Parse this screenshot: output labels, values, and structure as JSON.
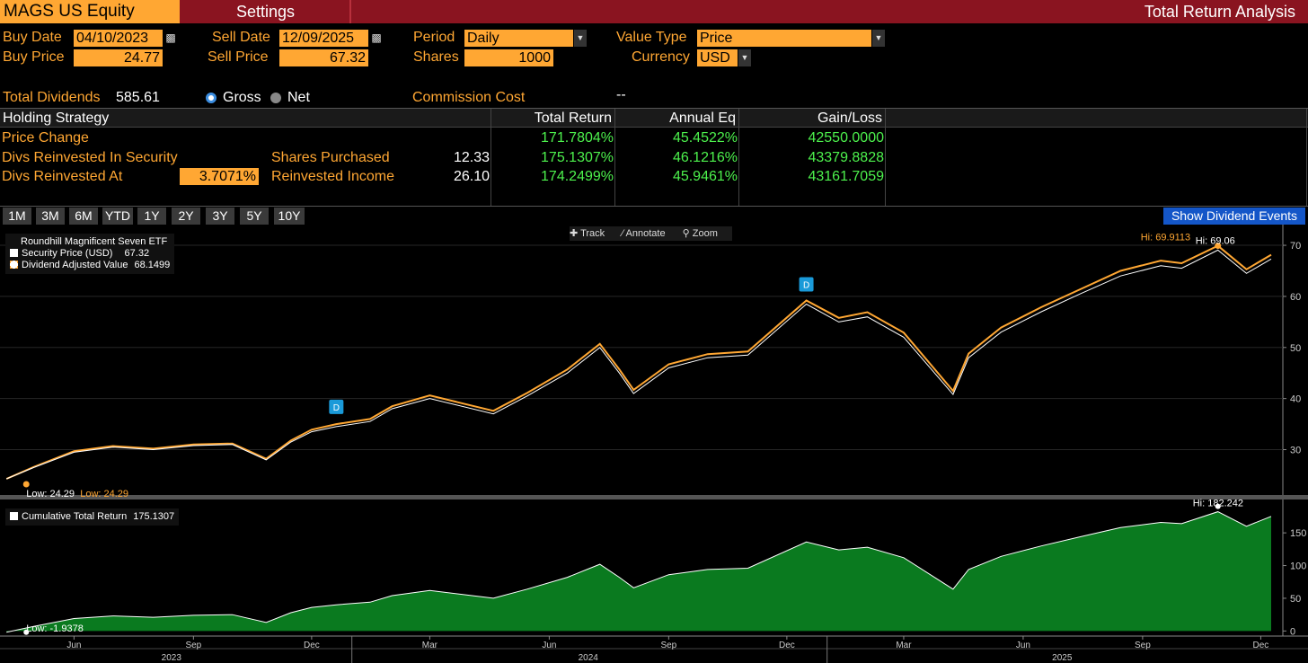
{
  "header": {
    "ticker": "MAGS US Equity",
    "settings_tab": "Settings",
    "title": "Total Return Analysis"
  },
  "params": {
    "buy_date_label": "Buy Date",
    "buy_date": "04/10/2023",
    "sell_date_label": "Sell Date",
    "sell_date": "12/09/2025",
    "period_label": "Period",
    "period": "Daily",
    "value_type_label": "Value Type",
    "value_type": "Price",
    "buy_price_label": "Buy Price",
    "buy_price": "24.77",
    "sell_price_label": "Sell Price",
    "sell_price": "67.32",
    "shares_label": "Shares",
    "shares": "1000",
    "currency_label": "Currency",
    "currency": "USD",
    "total_dividends_label": "Total Dividends",
    "total_dividends": "585.61",
    "gross_label": "Gross",
    "net_label": "Net",
    "commission_label": "Commission Cost",
    "commission_value": "--"
  },
  "table": {
    "headers": [
      "Holding Strategy",
      "Total Return",
      "Annual Eq",
      "Gain/Loss"
    ],
    "rows": [
      {
        "label": "Price Change",
        "extra_label": "",
        "extra_value": "",
        "total_return": "171.7804%",
        "annual_eq": "45.4522%",
        "gain_loss": "42550.0000"
      },
      {
        "label": "Divs Reinvested In Security",
        "extra_label": "Shares Purchased",
        "extra_value": "12.33",
        "total_return": "175.1307%",
        "annual_eq": "46.1216%",
        "gain_loss": "43379.8828"
      },
      {
        "label": "Divs Reinvested At",
        "rate": "3.7071%",
        "extra_label": "Reinvested Income",
        "extra_value": "26.10",
        "total_return": "174.2499%",
        "annual_eq": "45.9461%",
        "gain_loss": "43161.7059"
      }
    ]
  },
  "ranges": [
    "1M",
    "3M",
    "6M",
    "YTD",
    "1Y",
    "2Y",
    "3Y",
    "5Y",
    "10Y"
  ],
  "show_dividend_events": "Show Dividend Events",
  "chart_toolbar": {
    "track": "Track",
    "annotate": "Annotate",
    "zoom": "Zoom"
  },
  "legend": {
    "security_name": "Roundhill Magnificent Seven ETF",
    "price_label": "Security Price (USD)",
    "price_value": "67.32",
    "adj_label": "Dividend Adjusted Value",
    "adj_value": "68.1499",
    "cum_label": "Cumulative Total Return",
    "cum_value": "175.1307"
  },
  "colors": {
    "orange": "#ffa733",
    "header_red": "#8a1420",
    "green_fill": "#0a7a1f",
    "positive_text": "#4df24d"
  },
  "chart_data": [
    {
      "type": "line",
      "title": "",
      "series": [
        {
          "name": "Security Price (USD)"
        },
        {
          "name": "Dividend Adjusted Value"
        }
      ],
      "x": [
        "2023-04-10",
        "2023-05-01",
        "2023-06-01",
        "2023-07-01",
        "2023-08-01",
        "2023-09-01",
        "2023-10-01",
        "2023-10-27",
        "2023-11-15",
        "2023-12-01",
        "2023-12-20",
        "2024-01-15",
        "2024-02-01",
        "2024-03-01",
        "2024-04-19",
        "2024-05-15",
        "2024-06-15",
        "2024-07-10",
        "2024-07-25",
        "2024-08-05",
        "2024-09-01",
        "2024-10-01",
        "2024-11-01",
        "2024-12-16",
        "2025-01-10",
        "2025-02-01",
        "2025-03-01",
        "2025-04-08",
        "2025-04-20",
        "2025-05-15",
        "2025-06-15",
        "2025-07-15",
        "2025-08-15",
        "2025-09-15",
        "2025-10-01",
        "2025-10-29",
        "2025-11-20",
        "2025-12-09"
      ],
      "values_price": [
        24.29,
        26.5,
        29.5,
        30.5,
        30.0,
        30.8,
        31.0,
        28.0,
        31.5,
        33.5,
        34.5,
        35.5,
        38.0,
        40.0,
        37.0,
        40.5,
        45.0,
        50.0,
        45.0,
        41.0,
        46.0,
        48.0,
        48.5,
        58.5,
        55.0,
        56.0,
        52.0,
        40.8,
        48.0,
        53.0,
        57.0,
        60.5,
        64.0,
        66.0,
        65.5,
        69.06,
        64.5,
        67.32
      ],
      "values_adjusted": [
        24.29,
        26.6,
        29.7,
        30.7,
        30.2,
        31.0,
        31.2,
        28.2,
        31.8,
        33.9,
        35.0,
        36.0,
        38.5,
        40.6,
        37.6,
        41.1,
        45.7,
        50.7,
        45.7,
        41.7,
        46.7,
        48.7,
        49.2,
        59.2,
        55.8,
        56.9,
        52.9,
        41.5,
        48.8,
        53.9,
        57.9,
        61.4,
        65.0,
        67.0,
        66.5,
        69.9113,
        65.3,
        68.1499
      ],
      "annotations": {
        "low": "Low: 24.29",
        "low_adj": "Low: 24.29",
        "high_adj": "Hi: 69.9113",
        "high": "Hi: 69.06",
        "dividend_marker": "D"
      },
      "yticks": [
        30,
        40,
        50,
        60,
        70
      ],
      "ylim": [
        22,
        73
      ],
      "axis_side": "right"
    },
    {
      "type": "area",
      "series": [
        {
          "name": "Cumulative Total Return"
        }
      ],
      "x": [
        "2023-04-10",
        "2023-05-01",
        "2023-06-01",
        "2023-07-01",
        "2023-08-01",
        "2023-09-01",
        "2023-10-01",
        "2023-10-27",
        "2023-11-15",
        "2023-12-01",
        "2023-12-20",
        "2024-01-15",
        "2024-02-01",
        "2024-03-01",
        "2024-04-19",
        "2024-05-15",
        "2024-06-15",
        "2024-07-10",
        "2024-07-25",
        "2024-08-05",
        "2024-09-01",
        "2024-10-01",
        "2024-11-01",
        "2024-12-16",
        "2025-01-10",
        "2025-02-01",
        "2025-03-01",
        "2025-04-08",
        "2025-04-20",
        "2025-05-15",
        "2025-06-15",
        "2025-07-15",
        "2025-08-15",
        "2025-09-15",
        "2025-10-01",
        "2025-10-29",
        "2025-11-20",
        "2025-12-09"
      ],
      "values": [
        -1.9378,
        7,
        19,
        23,
        21,
        24,
        25,
        13,
        28,
        36,
        40,
        44,
        54,
        62,
        50,
        64,
        82,
        102,
        82,
        66,
        86,
        94,
        96,
        136,
        124,
        128,
        112,
        64,
        94,
        114,
        130,
        144,
        158,
        166,
        164,
        182.242,
        160,
        175.1307
      ],
      "annotations": {
        "low": "Low: -1.9378",
        "high": "Hi: 182.242"
      },
      "yticks": [
        0,
        50,
        100,
        150
      ],
      "ylim": [
        -5,
        190
      ],
      "axis_side": "right"
    }
  ],
  "x_axis": {
    "months": [
      {
        "label": "Jun",
        "date": "2023-06-01"
      },
      {
        "label": "Sep",
        "date": "2023-09-01"
      },
      {
        "label": "Dec",
        "date": "2023-12-01"
      },
      {
        "label": "Mar",
        "date": "2024-03-01"
      },
      {
        "label": "Jun",
        "date": "2024-06-01"
      },
      {
        "label": "Sep",
        "date": "2024-09-01"
      },
      {
        "label": "Dec",
        "date": "2024-12-01"
      },
      {
        "label": "Mar",
        "date": "2025-03-01"
      },
      {
        "label": "Jun",
        "date": "2025-06-01"
      },
      {
        "label": "Sep",
        "date": "2025-09-01"
      },
      {
        "label": "Dec",
        "date": "2025-12-01"
      }
    ],
    "years": [
      {
        "label": "2023",
        "date": "2023-08-15"
      },
      {
        "label": "2024",
        "date": "2024-07-01"
      },
      {
        "label": "2025",
        "date": "2025-07-01"
      }
    ],
    "year_boundaries": [
      "2024-01-01",
      "2025-01-01"
    ]
  }
}
